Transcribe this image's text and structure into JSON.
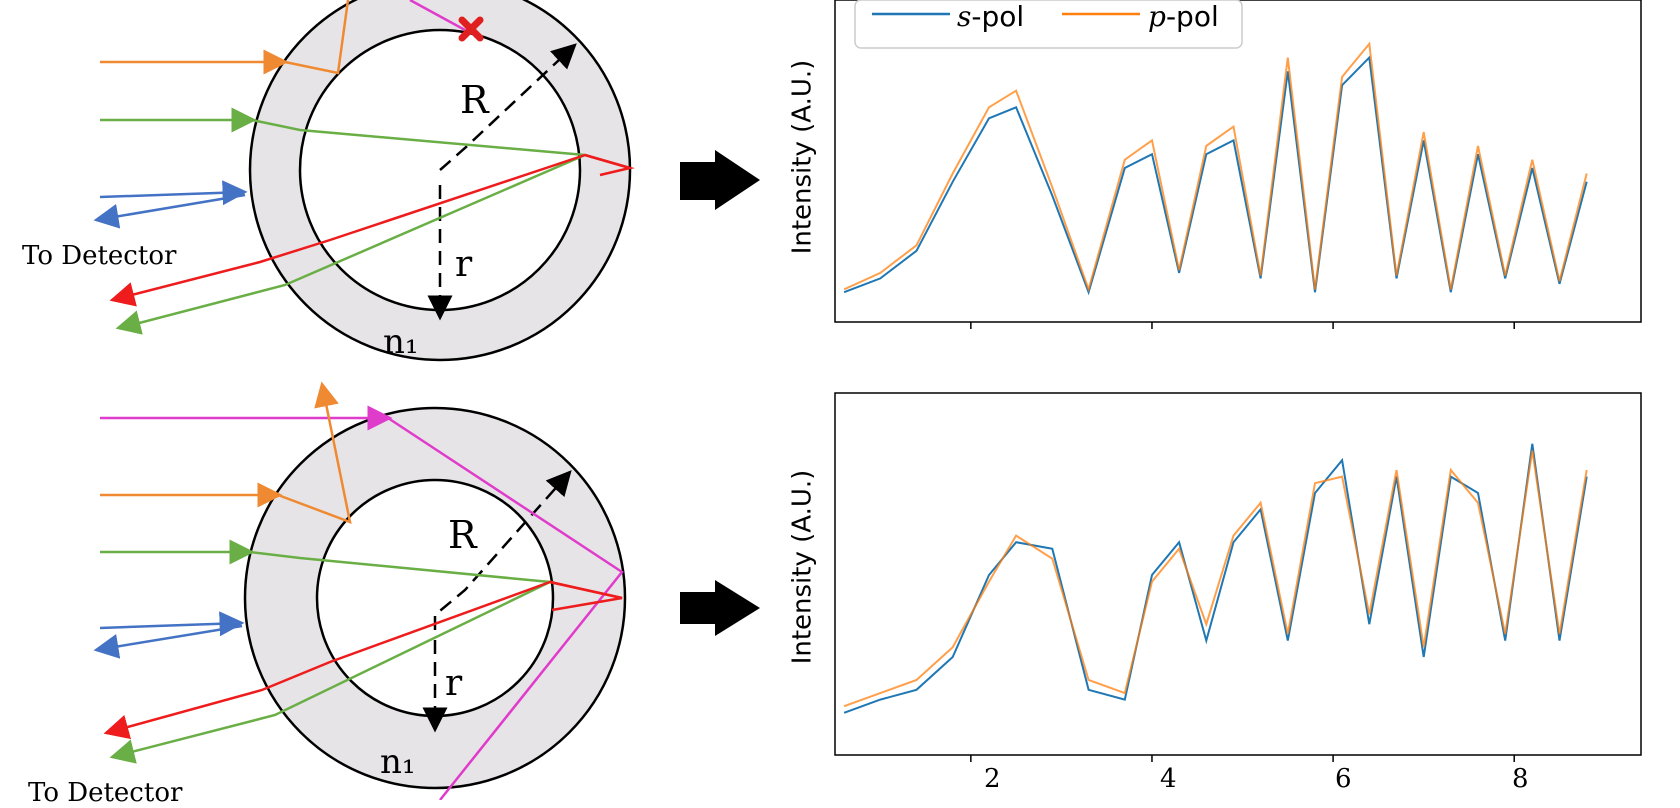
{
  "diagram": {
    "top": {
      "labels": {
        "R": "R",
        "r": "r",
        "n1": "n₁",
        "detector": "To Detector"
      }
    },
    "bottom": {
      "labels": {
        "R": "R",
        "r": "r",
        "n1": "n₁",
        "detector": "To Detector"
      }
    },
    "colors": {
      "orange": "#ef8a33",
      "green": "#6aae46",
      "blue": "#4472c4",
      "red": "#ee1c1c",
      "magenta": "#e03ccc",
      "ring_fill": "#e6e4e6",
      "marker": "#e02020"
    }
  },
  "chart_data": [
    {
      "type": "line",
      "ylabel": "Intensity (A.U.)",
      "xlim": [
        0.5,
        9.4
      ],
      "ylim": [
        0,
        1
      ],
      "xticks": [
        2,
        4,
        6,
        8
      ],
      "x_tick_labels_shown": false,
      "legend": {
        "placement": "top-left"
      },
      "series": [
        {
          "name": "s-pol",
          "name_prefix": "s",
          "name_suffix": "-pol",
          "color": "#1f77b4",
          "x": [
            0.6,
            1.0,
            1.4,
            1.8,
            2.2,
            2.5,
            2.9,
            3.3,
            3.7,
            4.0,
            4.3,
            4.6,
            4.9,
            5.2,
            5.5,
            5.8,
            6.1,
            6.4,
            6.7,
            7.0,
            7.3,
            7.6,
            7.9,
            8.2,
            8.5,
            8.8
          ],
          "values": [
            0.05,
            0.1,
            0.2,
            0.45,
            0.68,
            0.72,
            0.4,
            0.05,
            0.5,
            0.55,
            0.12,
            0.55,
            0.6,
            0.1,
            0.85,
            0.05,
            0.8,
            0.9,
            0.1,
            0.6,
            0.05,
            0.55,
            0.1,
            0.5,
            0.08,
            0.45
          ]
        },
        {
          "name": "p-pol",
          "name_prefix": "p",
          "name_suffix": "-pol",
          "color": "#ff7f0e",
          "x": [
            0.6,
            1.0,
            1.4,
            1.8,
            2.2,
            2.5,
            2.9,
            3.3,
            3.7,
            4.0,
            4.3,
            4.6,
            4.9,
            5.2,
            5.5,
            5.8,
            6.1,
            6.4,
            6.7,
            7.0,
            7.3,
            7.6,
            7.9,
            8.2,
            8.5,
            8.8
          ],
          "values": [
            0.06,
            0.12,
            0.22,
            0.48,
            0.72,
            0.78,
            0.43,
            0.06,
            0.53,
            0.6,
            0.13,
            0.58,
            0.65,
            0.11,
            0.9,
            0.06,
            0.83,
            0.95,
            0.11,
            0.63,
            0.06,
            0.58,
            0.11,
            0.53,
            0.09,
            0.48
          ]
        }
      ]
    },
    {
      "type": "line",
      "ylabel": "Intensity (A.U.)",
      "xlim": [
        0.5,
        9.4
      ],
      "ylim": [
        0,
        1
      ],
      "xticks": [
        2,
        4,
        6,
        8
      ],
      "xtick_labels": [
        "2",
        "4",
        "6",
        "8"
      ],
      "series": [
        {
          "name": "s-pol",
          "color": "#1f77b4",
          "x": [
            0.6,
            1.0,
            1.4,
            1.8,
            2.2,
            2.5,
            2.9,
            3.3,
            3.7,
            4.0,
            4.3,
            4.6,
            4.9,
            5.2,
            5.5,
            5.8,
            6.1,
            6.4,
            6.7,
            7.0,
            7.3,
            7.6,
            7.9,
            8.2,
            8.5,
            8.8
          ],
          "values": [
            0.08,
            0.12,
            0.15,
            0.25,
            0.5,
            0.6,
            0.58,
            0.15,
            0.12,
            0.5,
            0.6,
            0.3,
            0.6,
            0.7,
            0.3,
            0.75,
            0.85,
            0.35,
            0.8,
            0.25,
            0.8,
            0.75,
            0.3,
            0.9,
            0.3,
            0.8
          ]
        },
        {
          "name": "p-pol",
          "color": "#ff7f0e",
          "x": [
            0.6,
            1.0,
            1.4,
            1.8,
            2.2,
            2.5,
            2.9,
            3.3,
            3.7,
            4.0,
            4.3,
            4.6,
            4.9,
            5.2,
            5.5,
            5.8,
            6.1,
            6.4,
            6.7,
            7.0,
            7.3,
            7.6,
            7.9,
            8.2,
            8.5,
            8.8
          ],
          "values": [
            0.1,
            0.14,
            0.18,
            0.28,
            0.48,
            0.62,
            0.55,
            0.18,
            0.14,
            0.48,
            0.58,
            0.35,
            0.62,
            0.72,
            0.32,
            0.78,
            0.8,
            0.38,
            0.82,
            0.28,
            0.82,
            0.72,
            0.32,
            0.88,
            0.32,
            0.82
          ]
        }
      ]
    }
  ]
}
